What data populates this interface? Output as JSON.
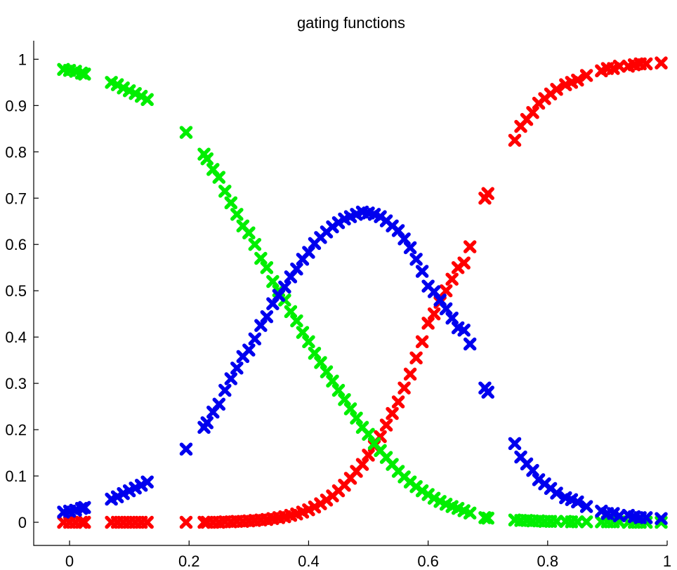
{
  "chart_data": {
    "type": "scatter",
    "title": "gating functions",
    "xlabel": "",
    "ylabel": "",
    "xlim": [
      -0.06,
      1.0
    ],
    "ylim": [
      -0.05,
      1.04
    ],
    "grid": false,
    "xticks": [
      "0",
      "0.2",
      "0.4",
      "0.6",
      "0.8",
      "1"
    ],
    "xtick_values": [
      0,
      0.2,
      0.4,
      0.6,
      0.8,
      1
    ],
    "yticks": [
      "0",
      "0.1",
      "0.2",
      "0.3",
      "0.4",
      "0.5",
      "0.6",
      "0.7",
      "0.8",
      "0.9",
      "1"
    ],
    "ytick_values": [
      0,
      0.1,
      0.2,
      0.3,
      0.4,
      0.5,
      0.6,
      0.7,
      0.8,
      0.9,
      1
    ],
    "marker": "x",
    "series": [
      {
        "color": "#ff0000",
        "x": [
          -0.01,
          0.0,
          0.01,
          0.02,
          0.025,
          0.07,
          0.08,
          0.09,
          0.1,
          0.11,
          0.12,
          0.13,
          0.195,
          0.225,
          0.23,
          0.24,
          0.25,
          0.26,
          0.27,
          0.28,
          0.29,
          0.3,
          0.31,
          0.32,
          0.33,
          0.34,
          0.35,
          0.36,
          0.37,
          0.38,
          0.39,
          0.4,
          0.41,
          0.42,
          0.43,
          0.44,
          0.45,
          0.46,
          0.47,
          0.48,
          0.49,
          0.5,
          0.51,
          0.52,
          0.53,
          0.54,
          0.55,
          0.56,
          0.57,
          0.58,
          0.59,
          0.6,
          0.61,
          0.62,
          0.63,
          0.64,
          0.65,
          0.66,
          0.67,
          0.695,
          0.7,
          0.745,
          0.755,
          0.765,
          0.775,
          0.785,
          0.795,
          0.805,
          0.815,
          0.83,
          0.84,
          0.85,
          0.865,
          0.89,
          0.9,
          0.91,
          0.92,
          0.935,
          0.945,
          0.955,
          0.965,
          0.99
        ],
        "y": [
          0.0,
          0.0,
          0.0,
          0.0,
          0.0,
          0.0,
          0.0,
          0.0,
          0.0,
          0.0,
          0.0,
          0.0,
          0.0,
          0.0,
          0.0,
          0.0,
          0.0,
          0.001,
          0.001,
          0.002,
          0.002,
          0.003,
          0.004,
          0.005,
          0.006,
          0.008,
          0.01,
          0.012,
          0.015,
          0.018,
          0.022,
          0.027,
          0.033,
          0.04,
          0.048,
          0.057,
          0.068,
          0.08,
          0.095,
          0.11,
          0.125,
          0.145,
          0.165,
          0.185,
          0.21,
          0.235,
          0.26,
          0.29,
          0.32,
          0.355,
          0.39,
          0.43,
          0.45,
          0.475,
          0.5,
          0.525,
          0.55,
          0.56,
          0.595,
          0.7,
          0.71,
          0.825,
          0.855,
          0.87,
          0.885,
          0.905,
          0.915,
          0.925,
          0.935,
          0.945,
          0.95,
          0.955,
          0.965,
          0.975,
          0.98,
          0.98,
          0.985,
          0.985,
          0.988,
          0.99,
          0.99,
          0.992
        ]
      },
      {
        "color": "#00ee00",
        "x": [
          -0.01,
          0.0,
          0.01,
          0.02,
          0.025,
          0.07,
          0.08,
          0.09,
          0.1,
          0.11,
          0.12,
          0.13,
          0.195,
          0.225,
          0.23,
          0.24,
          0.25,
          0.26,
          0.27,
          0.28,
          0.29,
          0.3,
          0.31,
          0.32,
          0.33,
          0.34,
          0.35,
          0.36,
          0.37,
          0.38,
          0.39,
          0.4,
          0.41,
          0.42,
          0.43,
          0.44,
          0.45,
          0.46,
          0.47,
          0.48,
          0.49,
          0.5,
          0.51,
          0.52,
          0.53,
          0.54,
          0.55,
          0.56,
          0.57,
          0.58,
          0.59,
          0.6,
          0.61,
          0.62,
          0.63,
          0.64,
          0.65,
          0.66,
          0.67,
          0.695,
          0.7,
          0.745,
          0.755,
          0.765,
          0.775,
          0.785,
          0.795,
          0.805,
          0.815,
          0.83,
          0.84,
          0.85,
          0.865,
          0.89,
          0.9,
          0.91,
          0.92,
          0.935,
          0.945,
          0.955,
          0.965,
          0.99
        ],
        "y": [
          0.978,
          0.976,
          0.974,
          0.97,
          0.968,
          0.95,
          0.945,
          0.938,
          0.932,
          0.926,
          0.92,
          0.913,
          0.842,
          0.795,
          0.785,
          0.762,
          0.745,
          0.715,
          0.69,
          0.665,
          0.64,
          0.625,
          0.6,
          0.57,
          0.55,
          0.52,
          0.5,
          0.48,
          0.455,
          0.435,
          0.41,
          0.39,
          0.365,
          0.345,
          0.325,
          0.305,
          0.285,
          0.265,
          0.245,
          0.225,
          0.205,
          0.19,
          0.17,
          0.155,
          0.14,
          0.125,
          0.11,
          0.098,
          0.087,
          0.077,
          0.068,
          0.06,
          0.052,
          0.045,
          0.039,
          0.034,
          0.03,
          0.025,
          0.02,
          0.01,
          0.009,
          0.005,
          0.004,
          0.004,
          0.003,
          0.003,
          0.002,
          0.002,
          0.002,
          0.002,
          0.001,
          0.001,
          0.001,
          0.001,
          0.001,
          0.001,
          0.001,
          0.0,
          0.0,
          0.0,
          0.0,
          0.0
        ]
      },
      {
        "color": "#0000ee",
        "x": [
          -0.01,
          0.0,
          0.01,
          0.02,
          0.025,
          0.07,
          0.08,
          0.09,
          0.1,
          0.11,
          0.12,
          0.13,
          0.195,
          0.225,
          0.23,
          0.24,
          0.25,
          0.26,
          0.27,
          0.28,
          0.29,
          0.3,
          0.31,
          0.32,
          0.33,
          0.34,
          0.35,
          0.36,
          0.37,
          0.38,
          0.39,
          0.4,
          0.41,
          0.42,
          0.43,
          0.44,
          0.45,
          0.46,
          0.47,
          0.48,
          0.49,
          0.5,
          0.51,
          0.52,
          0.53,
          0.54,
          0.55,
          0.56,
          0.57,
          0.58,
          0.59,
          0.6,
          0.61,
          0.62,
          0.63,
          0.64,
          0.65,
          0.66,
          0.67,
          0.695,
          0.7,
          0.745,
          0.755,
          0.765,
          0.775,
          0.785,
          0.795,
          0.805,
          0.815,
          0.83,
          0.84,
          0.85,
          0.865,
          0.89,
          0.9,
          0.91,
          0.92,
          0.935,
          0.945,
          0.955,
          0.965,
          0.99
        ],
        "y": [
          0.022,
          0.024,
          0.026,
          0.03,
          0.032,
          0.05,
          0.055,
          0.062,
          0.068,
          0.074,
          0.08,
          0.087,
          0.158,
          0.205,
          0.215,
          0.238,
          0.255,
          0.285,
          0.31,
          0.333,
          0.358,
          0.372,
          0.396,
          0.425,
          0.444,
          0.472,
          0.49,
          0.508,
          0.53,
          0.547,
          0.568,
          0.583,
          0.602,
          0.615,
          0.627,
          0.638,
          0.647,
          0.655,
          0.66,
          0.665,
          0.67,
          0.668,
          0.665,
          0.66,
          0.651,
          0.64,
          0.63,
          0.612,
          0.593,
          0.568,
          0.542,
          0.51,
          0.498,
          0.48,
          0.461,
          0.441,
          0.42,
          0.415,
          0.385,
          0.29,
          0.281,
          0.17,
          0.141,
          0.126,
          0.112,
          0.092,
          0.083,
          0.073,
          0.063,
          0.053,
          0.049,
          0.044,
          0.034,
          0.024,
          0.019,
          0.019,
          0.014,
          0.015,
          0.012,
          0.01,
          0.01,
          0.008
        ]
      }
    ]
  }
}
